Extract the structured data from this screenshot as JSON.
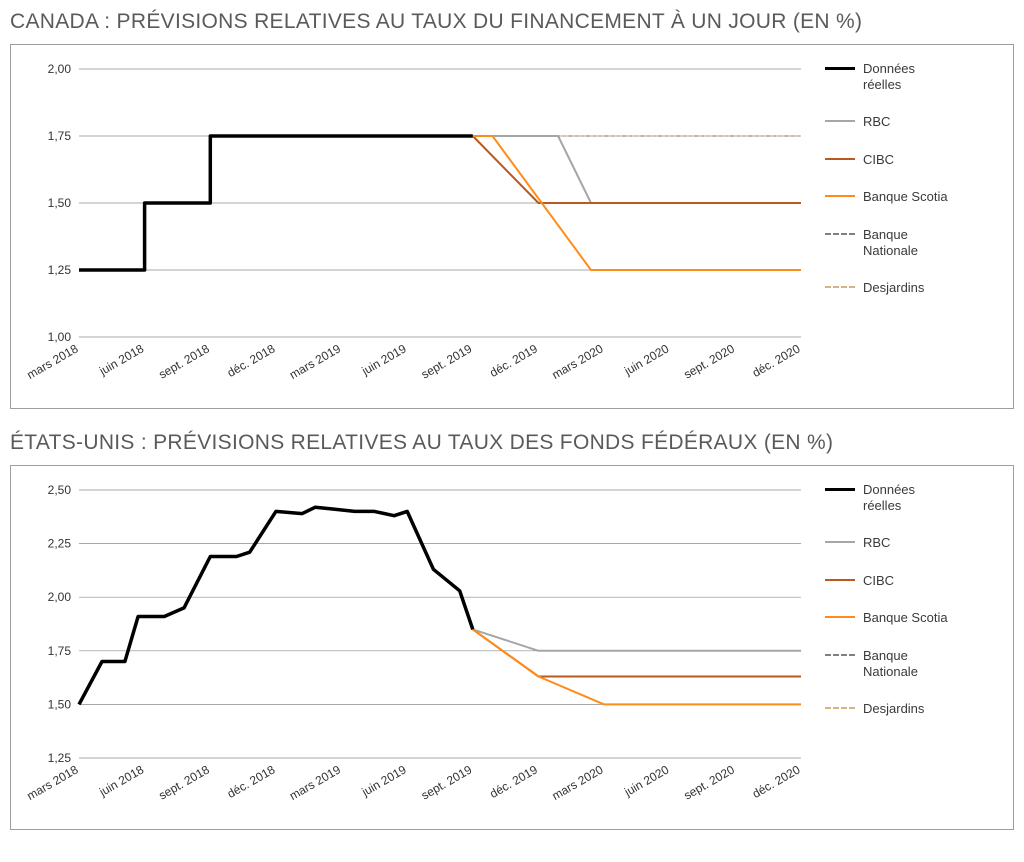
{
  "global": {
    "background_color": "#ffffff",
    "frame_border_color": "#9e9e9e",
    "grid_color": "#8c8c8c",
    "title_color": "#5a5a5a",
    "axis_text_color": "#333333",
    "title_fontsize": 21,
    "axis_fontsize": 12,
    "legend_fontsize": 13,
    "x_labels": [
      "mars 2018",
      "juin 2018",
      "sept. 2018",
      "déc. 2018",
      "mars 2019",
      "juin 2019",
      "sept. 2019",
      "déc. 2019",
      "mars 2020",
      "juin 2020",
      "sept. 2020",
      "déc. 2020"
    ],
    "x_label_rotation_deg": -30,
    "legend": [
      {
        "key": "actual",
        "label": "Données\nréelles",
        "color": "#000000",
        "width": 3.5,
        "dash": ""
      },
      {
        "key": "rbc",
        "label": "RBC",
        "color": "#a6a6a6",
        "width": 2,
        "dash": ""
      },
      {
        "key": "cibc",
        "label": "CIBC",
        "color": "#b85a1f",
        "width": 2,
        "dash": ""
      },
      {
        "key": "scotia",
        "label": "Banque Scotia",
        "color": "#ff8c1a",
        "width": 2,
        "dash": ""
      },
      {
        "key": "bnc",
        "label": "Banque\nNationale",
        "color": "#808080",
        "width": 1.2,
        "dash": "3,3"
      },
      {
        "key": "desj",
        "label": "Desjardins",
        "color": "#d4b483",
        "width": 1.2,
        "dash": "5,4"
      }
    ]
  },
  "charts": [
    {
      "id": "canada",
      "title": "CANADA : PRÉVISIONS RELATIVES AU TAUX DU FINANCEMENT À UN JOUR (EN %)",
      "type": "step-line",
      "ylim": [
        1.0,
        2.0
      ],
      "ytick_step": 0.25,
      "y_tick_labels": [
        "1,00",
        "1,25",
        "1,50",
        "1,75",
        "2,00"
      ],
      "series": {
        "actual": [
          [
            0,
            1.25
          ],
          [
            1,
            1.25
          ],
          [
            1,
            1.5
          ],
          [
            2,
            1.5
          ],
          [
            2,
            1.75
          ],
          [
            6,
            1.75
          ]
        ],
        "rbc": [
          [
            6,
            1.75
          ],
          [
            7.3,
            1.75
          ],
          [
            7.8,
            1.5
          ],
          [
            11,
            1.5
          ]
        ],
        "cibc": [
          [
            6,
            1.75
          ],
          [
            7.0,
            1.5
          ],
          [
            11,
            1.5
          ]
        ],
        "scotia": [
          [
            6,
            1.75
          ],
          [
            6.3,
            1.75
          ],
          [
            7.8,
            1.25
          ],
          [
            11,
            1.25
          ]
        ],
        "bnc": [
          [
            6,
            1.75
          ],
          [
            11,
            1.75
          ]
        ],
        "desj": [
          [
            6,
            1.75
          ],
          [
            11,
            1.75
          ]
        ]
      }
    },
    {
      "id": "us",
      "title": "ÉTATS-UNIS : PRÉVISIONS RELATIVES AU TAUX DES FONDS FÉDÉRAUX (EN %)",
      "type": "line",
      "ylim": [
        1.25,
        2.5
      ],
      "ytick_step": 0.25,
      "y_tick_labels": [
        "1,25",
        "1,50",
        "1,75",
        "2,00",
        "2,25",
        "2,50"
      ],
      "series": {
        "actual": [
          [
            0,
            1.5
          ],
          [
            0.35,
            1.7
          ],
          [
            0.7,
            1.7
          ],
          [
            0.9,
            1.91
          ],
          [
            1.3,
            1.91
          ],
          [
            1.6,
            1.95
          ],
          [
            2.0,
            2.19
          ],
          [
            2.4,
            2.19
          ],
          [
            2.6,
            2.21
          ],
          [
            3.0,
            2.4
          ],
          [
            3.4,
            2.39
          ],
          [
            3.6,
            2.42
          ],
          [
            3.9,
            2.41
          ],
          [
            4.2,
            2.4
          ],
          [
            4.5,
            2.4
          ],
          [
            4.8,
            2.38
          ],
          [
            5.0,
            2.4
          ],
          [
            5.4,
            2.13
          ],
          [
            5.8,
            2.03
          ],
          [
            6.0,
            1.85
          ]
        ],
        "rbc": [
          [
            6,
            1.85
          ],
          [
            7.0,
            1.75
          ],
          [
            11,
            1.75
          ]
        ],
        "cibc": [
          [
            6,
            1.85
          ],
          [
            7.0,
            1.63
          ],
          [
            11,
            1.63
          ]
        ],
        "scotia": [
          [
            6,
            1.85
          ],
          [
            7.0,
            1.63
          ],
          [
            8.0,
            1.5
          ],
          [
            11,
            1.5
          ]
        ],
        "bnc": [
          [
            6,
            1.85
          ],
          [
            7.0,
            1.75
          ],
          [
            11,
            1.75
          ]
        ],
        "desj": [
          [
            6,
            1.85
          ],
          [
            7.0,
            1.75
          ],
          [
            11,
            1.75
          ]
        ]
      }
    }
  ]
}
